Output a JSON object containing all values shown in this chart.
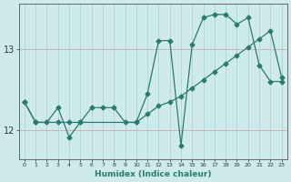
{
  "xlabel": "Humidex (Indice chaleur)",
  "ylabel": "",
  "bg_color": "#ceeaea",
  "line_color": "#2a7a72",
  "grid_color": "#c8a0a0",
  "xlim": [
    -0.5,
    23.5
  ],
  "ylim": [
    11.65,
    13.55
  ],
  "yticks": [
    12,
    13
  ],
  "xticks": [
    0,
    1,
    2,
    3,
    4,
    5,
    6,
    7,
    8,
    9,
    10,
    11,
    12,
    13,
    14,
    15,
    16,
    17,
    18,
    19,
    20,
    21,
    22,
    23
  ],
  "series1_x": [
    0,
    1,
    2,
    3,
    4,
    5,
    6,
    7,
    8,
    9,
    10,
    11,
    12,
    13,
    14,
    15,
    16,
    17,
    18,
    19,
    20,
    21,
    22,
    23
  ],
  "series1_y": [
    12.35,
    12.1,
    12.1,
    12.28,
    11.92,
    12.1,
    12.28,
    12.28,
    12.28,
    12.1,
    12.1,
    12.45,
    13.1,
    13.1,
    11.82,
    13.05,
    13.38,
    13.42,
    13.42,
    13.3,
    13.38,
    12.8,
    12.6,
    12.6
  ],
  "series2_x": [
    0,
    1,
    3,
    4,
    5,
    10,
    11,
    12,
    13,
    14,
    15,
    16,
    17,
    18,
    19,
    20,
    21,
    22,
    23
  ],
  "series2_y": [
    12.35,
    12.1,
    12.1,
    12.1,
    12.1,
    12.1,
    12.2,
    12.3,
    12.35,
    12.42,
    12.52,
    12.62,
    12.72,
    12.82,
    12.92,
    13.02,
    13.12,
    13.22,
    12.65
  ],
  "marker": "D",
  "markersize": 2.5,
  "linewidth": 0.9
}
